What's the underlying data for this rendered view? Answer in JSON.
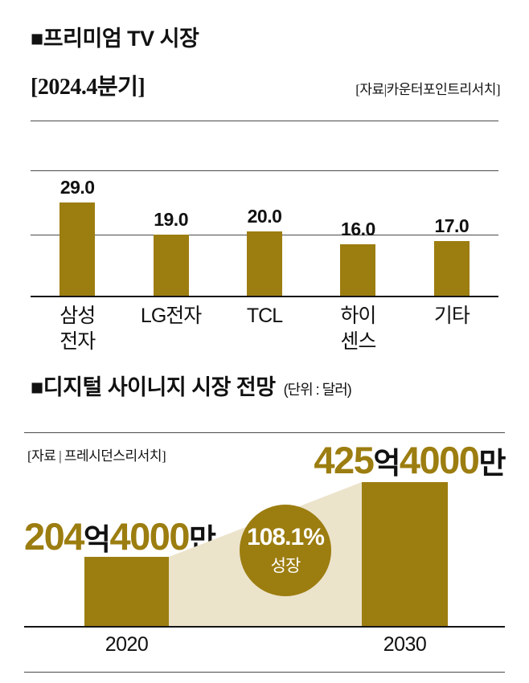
{
  "colors": {
    "gold": "#9c7d10",
    "beige": "#ece3cb",
    "baseline": "#151515",
    "gridline": "#4a4a4a",
    "text": "#111111",
    "badge_text": "#ffffff"
  },
  "premium_tv": {
    "title": "■프리미엄 TV 시장",
    "period": "[2024.4분기]",
    "source": "[자료|카운터포인트리서치]"
  },
  "signage": {
    "title": "■디지털 사이니지 시장 전망",
    "unit_note": "(단위 : 달러)",
    "source": "[자료 | 프레시던스리서치]",
    "value_2020": {
      "n1": "204",
      "u1": "억",
      "n2": "4000",
      "u2": "만"
    },
    "value_2030": {
      "n1": "425",
      "u1": "억",
      "n2": "4000",
      "u2": "만"
    },
    "badge": {
      "percent": "108.1%",
      "label": "성장"
    }
  },
  "chart_data": [
    {
      "type": "bar",
      "title": "프리미엄 TV 시장 [2024.4분기]",
      "source": "카운터포인트리서치",
      "categories": [
        "삼성전자",
        "LG전자",
        "TCL",
        "하이센스",
        "기타"
      ],
      "category_display": [
        "삼성\n전자",
        "LG전자",
        "TCL",
        "하이\n센스",
        "기타"
      ],
      "values": [
        29.0,
        19.0,
        20.0,
        16.0,
        17.0
      ],
      "value_labels": [
        "29.0",
        "19.0",
        "20.0",
        "16.0",
        "17.0"
      ],
      "ylim": [
        0,
        40
      ],
      "gridline_step": 20,
      "legend": "none",
      "bar_color": "#9c7d10"
    },
    {
      "type": "bar",
      "title": "디지털 사이니지 시장 전망",
      "unit": "달러",
      "source": "프레시던스리서치",
      "categories": [
        "2020",
        "2030"
      ],
      "values": [
        204.4,
        425.4
      ],
      "value_unit": "억 달러",
      "value_labels": [
        "204억4000만",
        "425억4000만"
      ],
      "growth_annotation": "108.1% 성장",
      "bar_color": "#9c7d10"
    }
  ]
}
